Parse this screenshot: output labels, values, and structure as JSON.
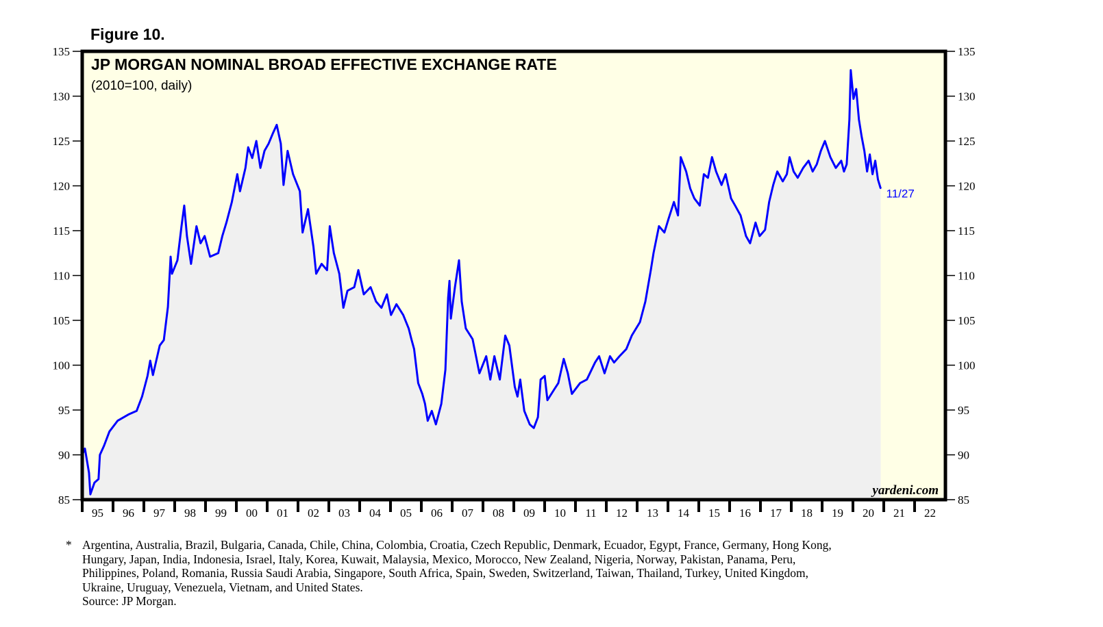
{
  "figure_label": "Figure 10.",
  "chart_data": {
    "type": "area",
    "title": "JP MORGAN NOMINAL BROAD EFFECTIVE EXCHANGE RATE",
    "subtitle": "(2010=100, daily)",
    "xlabel": "",
    "ylabel": "",
    "ylim": [
      85,
      135
    ],
    "xlim": [
      1995,
      2023
    ],
    "y_ticks": [
      85,
      90,
      95,
      100,
      105,
      110,
      115,
      120,
      125,
      130,
      135
    ],
    "x_tick_labels": [
      "95",
      "96",
      "97",
      "98",
      "99",
      "00",
      "01",
      "02",
      "03",
      "04",
      "05",
      "06",
      "07",
      "08",
      "09",
      "10",
      "11",
      "12",
      "13",
      "14",
      "15",
      "16",
      "17",
      "18",
      "19",
      "20",
      "21",
      "22"
    ],
    "grid": false,
    "end_label": "11/27",
    "watermark": "yardeni.com",
    "colors": {
      "line": "#0000ff",
      "plot_bg": "#ffffe6",
      "area_fill": "#f0f0f0"
    },
    "series": [
      {
        "name": "JP Morgan Nominal Broad Effective Exchange Rate",
        "x": [
          1995.0,
          1995.1,
          1995.25,
          1995.3,
          1995.45,
          1995.6,
          1995.65,
          1995.8,
          1996.0,
          1996.3,
          1996.7,
          1997.0,
          1997.2,
          1997.4,
          1997.5,
          1997.6,
          1997.85,
          1998.0,
          1998.15,
          1998.25,
          1998.3,
          1998.5,
          1998.65,
          1998.75,
          1998.85,
          1999.0,
          1999.2,
          1999.35,
          1999.5,
          1999.7,
          2000.0,
          2000.15,
          2000.3,
          2000.5,
          2000.7,
          2000.8,
          2001.0,
          2001.1,
          2001.25,
          2001.4,
          2001.55,
          2001.7,
          2001.85,
          2002.0,
          2002.15,
          2002.3,
          2002.4,
          2002.55,
          2002.75,
          2003.0,
          2003.1,
          2003.3,
          2003.5,
          2003.6,
          2003.8,
          2004.0,
          2004.1,
          2004.25,
          2004.45,
          2004.6,
          2004.75,
          2005.0,
          2005.15,
          2005.35,
          2005.6,
          2005.8,
          2006.0,
          2006.2,
          2006.35,
          2006.55,
          2006.8,
          2007.0,
          2007.1,
          2007.2,
          2007.35,
          2007.5,
          2007.6,
          2007.7,
          2007.85,
          2008.0,
          2008.2,
          2008.35,
          2008.45,
          2008.5,
          2008.55,
          2008.7,
          2008.85,
          2008.95,
          2009.1,
          2009.35,
          2009.6,
          2009.85,
          2010.0,
          2010.15,
          2010.35,
          2010.55,
          2010.7,
          2010.9,
          2011.0,
          2011.1,
          2011.25,
          2011.45,
          2011.6,
          2011.75,
          2011.85,
          2012.0,
          2012.1,
          2012.35,
          2012.5,
          2012.7,
          2012.85,
          2013.0,
          2013.3,
          2013.55,
          2013.85,
          2014.0,
          2014.2,
          2014.4,
          2014.55,
          2014.75,
          2015.0,
          2015.2,
          2015.5,
          2015.7,
          2015.9,
          2016.0,
          2016.2,
          2016.4,
          2016.55,
          2016.75,
          2016.9,
          2017.0,
          2017.2,
          2017.35,
          2017.5,
          2017.7,
          2017.85,
          2018.0,
          2018.15,
          2018.3,
          2018.5,
          2018.65,
          2018.85,
          2019.0,
          2019.2,
          2019.4,
          2019.55,
          2019.75,
          2019.9,
          2020.1,
          2020.25,
          2020.4,
          2020.55,
          2020.75,
          2020.9,
          2021.0,
          2021.15,
          2021.3,
          2021.5,
          2021.7,
          2021.85,
          2022.0,
          2022.15,
          2022.3,
          2022.5,
          2022.7,
          2022.9,
          2023.0,
          2023.1,
          2023.2,
          2023.25,
          2023.35,
          2023.45,
          2023.55,
          2023.65,
          2023.75,
          2023.85,
          2023.95,
          2024.05,
          2024.15,
          2024.25,
          2024.35
        ],
        "values": [
          90.0,
          90.7,
          88.0,
          85.6,
          86.9,
          87.3,
          90.0,
          91.0,
          92.6,
          93.8,
          94.5,
          94.9,
          96.5,
          98.8,
          100.5,
          98.9,
          102.2,
          102.8,
          106.5,
          112.1,
          110.2,
          111.7,
          115.5,
          117.8,
          114.4,
          111.3,
          115.5,
          113.6,
          114.4,
          112.1,
          112.5,
          114.4,
          115.9,
          118.2,
          121.3,
          119.4,
          122.0,
          124.3,
          123.1,
          125.0,
          122.0,
          123.9,
          124.7,
          125.8,
          126.8,
          124.7,
          120.1,
          123.9,
          121.3,
          119.4,
          114.8,
          117.4,
          113.2,
          110.2,
          111.3,
          110.6,
          115.5,
          112.5,
          110.2,
          106.4,
          108.3,
          108.7,
          110.6,
          107.9,
          108.7,
          107.1,
          106.4,
          107.9,
          105.6,
          106.8,
          105.6,
          104.1,
          102.9,
          101.8,
          98.0,
          96.8,
          95.7,
          93.8,
          94.9,
          93.4,
          95.7,
          99.5,
          107.5,
          109.4,
          105.2,
          108.7,
          111.7,
          107.1,
          104.1,
          102.9,
          99.1,
          101.0,
          98.4,
          101.0,
          98.4,
          103.3,
          102.2,
          97.6,
          96.5,
          98.4,
          94.9,
          93.4,
          93.0,
          94.2,
          98.4,
          98.8,
          96.1,
          97.3,
          98.0,
          100.7,
          99.1,
          96.8,
          98.0,
          98.4,
          100.3,
          101.0,
          99.1,
          101.0,
          100.3,
          101.0,
          101.8,
          103.3,
          104.8,
          107.1,
          110.6,
          112.5,
          115.5,
          114.8,
          116.3,
          118.2,
          116.7,
          123.2,
          121.6,
          119.7,
          118.6,
          117.8,
          121.3,
          120.9,
          123.2,
          121.6,
          120.1,
          121.3,
          118.6,
          117.8,
          116.7,
          114.4,
          113.6,
          115.9,
          114.4,
          115.1,
          118.2,
          120.1,
          121.6,
          120.5,
          121.3,
          123.2,
          121.6,
          120.9,
          122.0,
          122.8,
          121.6,
          122.4,
          123.9,
          125.0,
          123.2,
          122.0,
          122.8,
          121.6,
          122.4,
          127.4,
          132.9,
          129.7,
          130.8,
          127.4,
          125.5,
          123.9,
          121.6,
          123.5,
          121.3,
          122.8,
          120.7,
          119.7
        ]
      }
    ]
  },
  "footnote": {
    "marker": "*",
    "lines": [
      "Argentina, Australia, Brazil, Bulgaria, Canada, Chile, China, Colombia, Croatia, Czech Republic, Denmark, Ecuador, Egypt, France, Germany, Hong Kong,",
      "Hungary, Japan, India, Indonesia, Israel, Italy, Korea, Kuwait, Malaysia, Mexico, Morocco, New Zealand, Nigeria, Norway, Pakistan, Panama, Peru,",
      "Philippines, Poland, Romania, Russia Saudi Arabia, Singapore, South Africa, Spain, Sweden, Switzerland, Taiwan, Thailand, Turkey, United Kingdom,",
      "Ukraine, Uruguay, Venezuela, Vietnam, and United States."
    ],
    "source": "Source: JP Morgan."
  }
}
